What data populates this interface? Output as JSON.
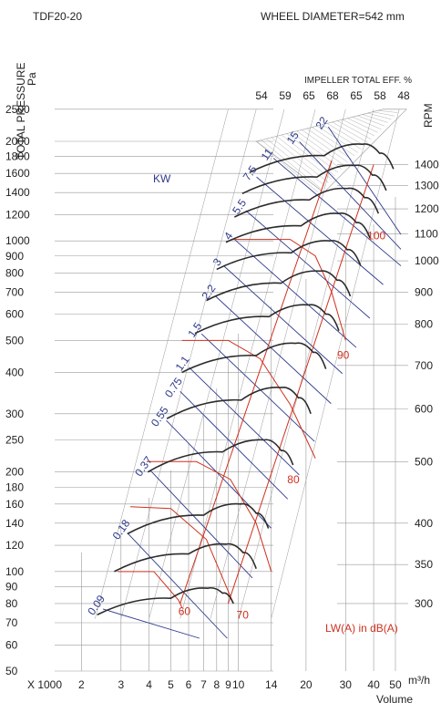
{
  "chart_data": {
    "type": "line",
    "title": "TDF20-20",
    "subtitle": "WHEEL DIAMETER=542 mm",
    "ylabel": "TOTAL PRESSURE",
    "yunit": "Pa",
    "xlabel": "Volume",
    "xprefix": "X 1000",
    "xunit": "m³/h",
    "rpm_label": "RPM",
    "kw_label": "KW",
    "lw_label": "LW(A) in dB(A)",
    "eff_header": "IMPELLER  TOTAL EFF. %",
    "x_scale": "log",
    "y_scale": "log",
    "xlim": [
      1.7,
      57
    ],
    "ylim": [
      50,
      2800
    ],
    "y_ticks": [
      50,
      60,
      70,
      80,
      90,
      100,
      120,
      140,
      160,
      180,
      200,
      250,
      300,
      400,
      500,
      600,
      700,
      800,
      900,
      1000,
      1200,
      1400,
      1600,
      1800,
      2000,
      2500
    ],
    "x_ticks": [
      "2",
      "3",
      "4",
      "5",
      "6",
      "7",
      "8",
      "9",
      "10",
      "14",
      "20",
      "30",
      "40",
      "50"
    ],
    "x_tick_values": [
      2,
      3,
      4,
      5,
      6,
      7,
      8,
      9,
      10,
      14,
      20,
      30,
      40,
      50
    ],
    "efficiency_labels": [
      "54",
      "59",
      "65",
      "68",
      "65",
      "58",
      "48"
    ],
    "kw_lines": [
      {
        "label": "0.09",
        "x": 2.4,
        "y": 78
      },
      {
        "label": "0.18",
        "x": 3.1,
        "y": 132
      },
      {
        "label": "0.37",
        "x": 3.9,
        "y": 205
      },
      {
        "label": "0.55",
        "x": 4.6,
        "y": 290
      },
      {
        "label": "0.75",
        "x": 5.3,
        "y": 355
      },
      {
        "label": "1.1",
        "x": 5.8,
        "y": 420
      },
      {
        "label": "1.5",
        "x": 6.6,
        "y": 530
      },
      {
        "label": "2.2",
        "x": 7.6,
        "y": 690
      },
      {
        "label": "3",
        "x": 8.3,
        "y": 850
      },
      {
        "label": "4",
        "x": 9.3,
        "y": 1020
      },
      {
        "label": "5.5",
        "x": 10.4,
        "y": 1250
      },
      {
        "label": "7.5",
        "x": 11.6,
        "y": 1580
      },
      {
        "label": "11",
        "x": 13.8,
        "y": 1800
      },
      {
        "label": "15",
        "x": 18.0,
        "y": 2020
      },
      {
        "label": "22",
        "x": 24.2,
        "y": 2240
      }
    ],
    "rpm_curves": [
      {
        "rpm": "300",
        "y_right": 80,
        "points": [
          [
            2.35,
            74
          ],
          [
            5,
            83
          ],
          [
            7.3,
            89
          ],
          [
            8.5,
            86
          ],
          [
            9.5,
            80
          ]
        ]
      },
      {
        "rpm": "350",
        "y_right": 105,
        "points": [
          [
            2.8,
            100
          ],
          [
            6,
            113
          ],
          [
            8.8,
            121
          ],
          [
            10.5,
            114
          ],
          [
            12,
            102
          ]
        ]
      },
      {
        "rpm": "400",
        "y_right": 140,
        "points": [
          [
            3.2,
            130
          ],
          [
            7,
            148
          ],
          [
            10.2,
            160
          ],
          [
            12,
            150
          ],
          [
            13.6,
            135
          ]
        ]
      },
      {
        "rpm": "500",
        "y_right": 215,
        "points": [
          [
            3.95,
            200
          ],
          [
            8.5,
            230
          ],
          [
            13,
            250
          ],
          [
            15.5,
            232
          ],
          [
            17.5,
            210
          ]
        ]
      },
      {
        "rpm": "600",
        "y_right": 310,
        "points": [
          [
            4.8,
            290
          ],
          [
            10.3,
            330
          ],
          [
            15.5,
            360
          ],
          [
            18.5,
            335
          ],
          [
            21,
            300
          ]
        ]
      },
      {
        "rpm": "700",
        "y_right": 420,
        "points": [
          [
            5.6,
            400
          ],
          [
            12,
            450
          ],
          [
            18,
            490
          ],
          [
            21.5,
            460
          ],
          [
            24.5,
            410
          ]
        ]
      },
      {
        "rpm": "800",
        "y_right": 560,
        "points": [
          [
            6.4,
            525
          ],
          [
            13.7,
            590
          ],
          [
            20.5,
            640
          ],
          [
            24.5,
            600
          ],
          [
            28,
            535
          ]
        ]
      },
      {
        "rpm": "900",
        "y_right": 700,
        "points": [
          [
            7.2,
            660
          ],
          [
            15.5,
            745
          ],
          [
            23,
            810
          ],
          [
            27.5,
            760
          ],
          [
            31.5,
            680
          ]
        ]
      },
      {
        "rpm": "1000",
        "y_right": 870,
        "points": [
          [
            8.0,
            820
          ],
          [
            17.2,
            920
          ],
          [
            25.5,
            1000
          ],
          [
            30.5,
            940
          ],
          [
            35,
            840
          ]
        ]
      },
      {
        "rpm": "1100",
        "y_right": 1050,
        "points": [
          [
            8.8,
            990
          ],
          [
            19,
            1110
          ],
          [
            28,
            1210
          ],
          [
            33.5,
            1135
          ],
          [
            38.5,
            1020
          ]
        ]
      },
      {
        "rpm": "1200",
        "y_right": 1250,
        "points": [
          [
            9.6,
            1180
          ],
          [
            20.7,
            1330
          ],
          [
            30.5,
            1440
          ],
          [
            36.5,
            1350
          ],
          [
            42,
            1210
          ]
        ]
      },
      {
        "rpm": "1300",
        "y_right": 1470,
        "points": [
          [
            10.4,
            1390
          ],
          [
            22.4,
            1560
          ],
          [
            33,
            1690
          ],
          [
            39.5,
            1580
          ],
          [
            45.5,
            1420
          ]
        ]
      },
      {
        "rpm": "1400",
        "y_right": 1700,
        "points": [
          [
            11.2,
            1610
          ],
          [
            24.1,
            1810
          ],
          [
            35.6,
            1960
          ],
          [
            42.5,
            1840
          ],
          [
            49,
            1650
          ]
        ]
      }
    ],
    "rpm_labels": [
      "300",
      "350",
      "400",
      "500",
      "600",
      "700",
      "800",
      "900",
      "1000",
      "1100",
      "1200",
      "1300",
      "1400"
    ],
    "sound_labels": [
      {
        "label": "60",
        "x": 5.4,
        "y": 74
      },
      {
        "label": "70",
        "x": 9.8,
        "y": 72
      },
      {
        "label": "80",
        "x": 16.5,
        "y": 185
      },
      {
        "label": "90",
        "x": 27.5,
        "y": 440
      },
      {
        "label": "100",
        "x": 37.5,
        "y": 1010
      }
    ],
    "colors": {
      "rpm_curve": "#2b2b2b",
      "kw_line": "#2e3a8c",
      "sound_line": "#d0301e",
      "grid": "#9a9a9a",
      "text": "#222222"
    }
  }
}
